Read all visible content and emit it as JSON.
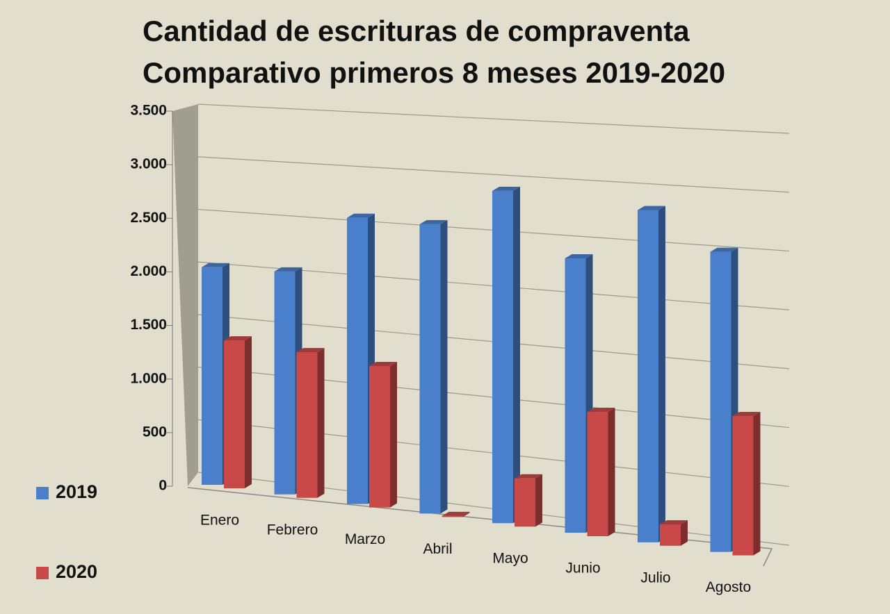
{
  "chart_data": {
    "type": "bar3d",
    "title": "Cantidad de escrituras de compraventa",
    "subtitle": "Comparativo primeros 8 meses 2019-2020",
    "categories": [
      "Enero",
      "Febrero",
      "Marzo",
      "Abril",
      "Mayo",
      "Junio",
      "Julio",
      "Agosto"
    ],
    "series": [
      {
        "name": "2019",
        "color": "#4a7fcc",
        "values": [
          2030,
          2080,
          2670,
          2700,
          3100,
          2560,
          3100,
          2800
        ]
      },
      {
        "name": "2020",
        "color": "#c94848",
        "values": [
          1380,
          1360,
          1320,
          10,
          450,
          1160,
          200,
          1300
        ]
      }
    ],
    "ylim": [
      0,
      3500
    ],
    "yticks": [
      0,
      500,
      {
        "value": 1000,
        "label": "1.000"
      },
      {
        "value": 1500,
        "label": "1.500"
      },
      {
        "value": 2000,
        "label": "2.000"
      },
      {
        "value": 2500,
        "label": "2.500"
      },
      {
        "value": 3000,
        "label": "3.000"
      },
      {
        "value": 3500,
        "label": "3.500"
      }
    ],
    "grid": true,
    "legend": "left"
  }
}
